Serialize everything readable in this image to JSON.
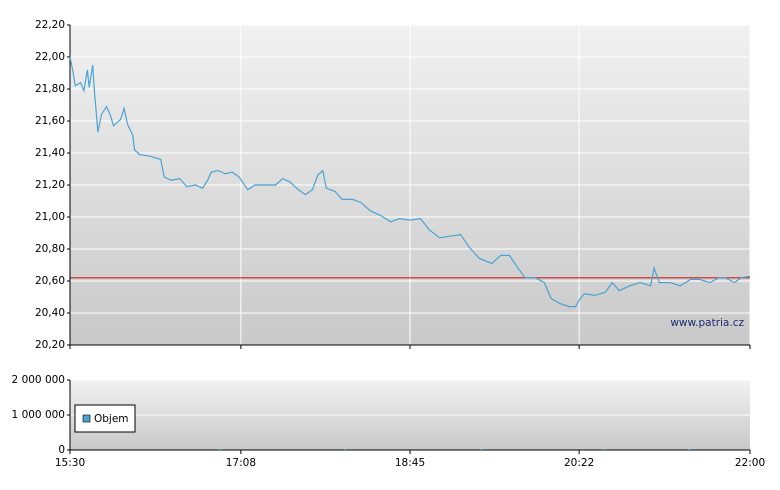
{
  "chart_data": [
    {
      "type": "line",
      "color": "#4ba3d3",
      "grid": true,
      "xtick_labels": false,
      "watermark": "www.patria.cz",
      "reference_line": {
        "value": 20.62,
        "color": "#cc2222"
      },
      "xlim": [
        930,
        1320
      ],
      "xticks": [
        930,
        1028,
        1125,
        1222,
        1320
      ],
      "ylim": [
        20.2,
        22.2
      ],
      "yticks": [
        {
          "value": 20.2,
          "label": "20,20"
        },
        {
          "value": 20.4,
          "label": "20,40"
        },
        {
          "value": 20.6,
          "label": "20,60"
        },
        {
          "value": 20.8,
          "label": "20,80"
        },
        {
          "value": 21.0,
          "label": "21,00"
        },
        {
          "value": 21.2,
          "label": "21,20"
        },
        {
          "value": 21.4,
          "label": "21,40"
        },
        {
          "value": 21.6,
          "label": "21,60"
        },
        {
          "value": 21.8,
          "label": "21,80"
        },
        {
          "value": 22.0,
          "label": "22,00"
        },
        {
          "value": 22.2,
          "label": "22,20"
        }
      ],
      "x": [
        930,
        932,
        933,
        936,
        938,
        940,
        941,
        943,
        944,
        946,
        948,
        951,
        953,
        955,
        959,
        961,
        963,
        966,
        967,
        970,
        976,
        982,
        984,
        988,
        993,
        997,
        1002,
        1006,
        1009,
        1011,
        1015,
        1019,
        1023,
        1027,
        1032,
        1036,
        1042,
        1048,
        1052,
        1056,
        1061,
        1065,
        1069,
        1072,
        1075,
        1077,
        1082,
        1086,
        1092,
        1097,
        1102,
        1108,
        1114,
        1119,
        1125,
        1131,
        1136,
        1142,
        1148,
        1154,
        1159,
        1165,
        1172,
        1177,
        1182,
        1187,
        1191,
        1197,
        1202,
        1206,
        1211,
        1216,
        1220,
        1222,
        1225,
        1231,
        1237,
        1241,
        1245,
        1251,
        1257,
        1263,
        1265,
        1268,
        1274,
        1280,
        1286,
        1291,
        1297,
        1302,
        1306,
        1311,
        1315,
        1320
      ],
      "values": [
        22.0,
        21.89,
        21.82,
        21.84,
        21.79,
        21.92,
        21.81,
        21.95,
        21.79,
        21.53,
        21.64,
        21.69,
        21.64,
        21.57,
        21.61,
        21.68,
        21.58,
        21.51,
        21.42,
        21.39,
        21.38,
        21.36,
        21.25,
        21.23,
        21.24,
        21.19,
        21.2,
        21.18,
        21.23,
        21.28,
        21.29,
        21.27,
        21.28,
        21.25,
        21.17,
        21.2,
        21.2,
        21.2,
        21.24,
        21.22,
        21.17,
        21.14,
        21.17,
        21.26,
        21.29,
        21.18,
        21.16,
        21.11,
        21.11,
        21.09,
        21.04,
        21.01,
        20.97,
        20.99,
        20.98,
        20.99,
        20.92,
        20.87,
        20.88,
        20.89,
        20.81,
        20.74,
        20.71,
        20.76,
        20.76,
        20.68,
        20.62,
        20.62,
        20.59,
        20.49,
        20.46,
        20.44,
        20.44,
        20.48,
        20.52,
        20.51,
        20.53,
        20.59,
        20.54,
        20.57,
        20.59,
        20.57,
        20.68,
        20.59,
        20.59,
        20.57,
        20.61,
        20.61,
        20.59,
        20.62,
        20.62,
        20.59,
        20.62,
        20.63
      ]
    },
    {
      "type": "bar",
      "grid": true,
      "xtick_labels": true,
      "legend": "left",
      "xlim": [
        930,
        1320
      ],
      "xticks": [
        {
          "value": 930,
          "label": "15:30"
        },
        {
          "value": 1028,
          "label": "17:08"
        },
        {
          "value": 1125,
          "label": "18:45"
        },
        {
          "value": 1222,
          "label": "20:22"
        },
        {
          "value": 1320,
          "label": "22:00"
        }
      ],
      "ylim": [
        0,
        2000000
      ],
      "yticks": [
        0,
        {
          "value": 1000000,
          "label": "1 000 000"
        },
        {
          "value": 2000000,
          "label": "2 000 000"
        }
      ],
      "series": [
        {
          "name": "Objem",
          "color": "#4ba3d3",
          "x": [
            1016,
            1088,
            1166,
            1236,
            1285
          ],
          "values": [
            20000,
            15000,
            15000,
            20000,
            15000
          ]
        }
      ]
    }
  ]
}
